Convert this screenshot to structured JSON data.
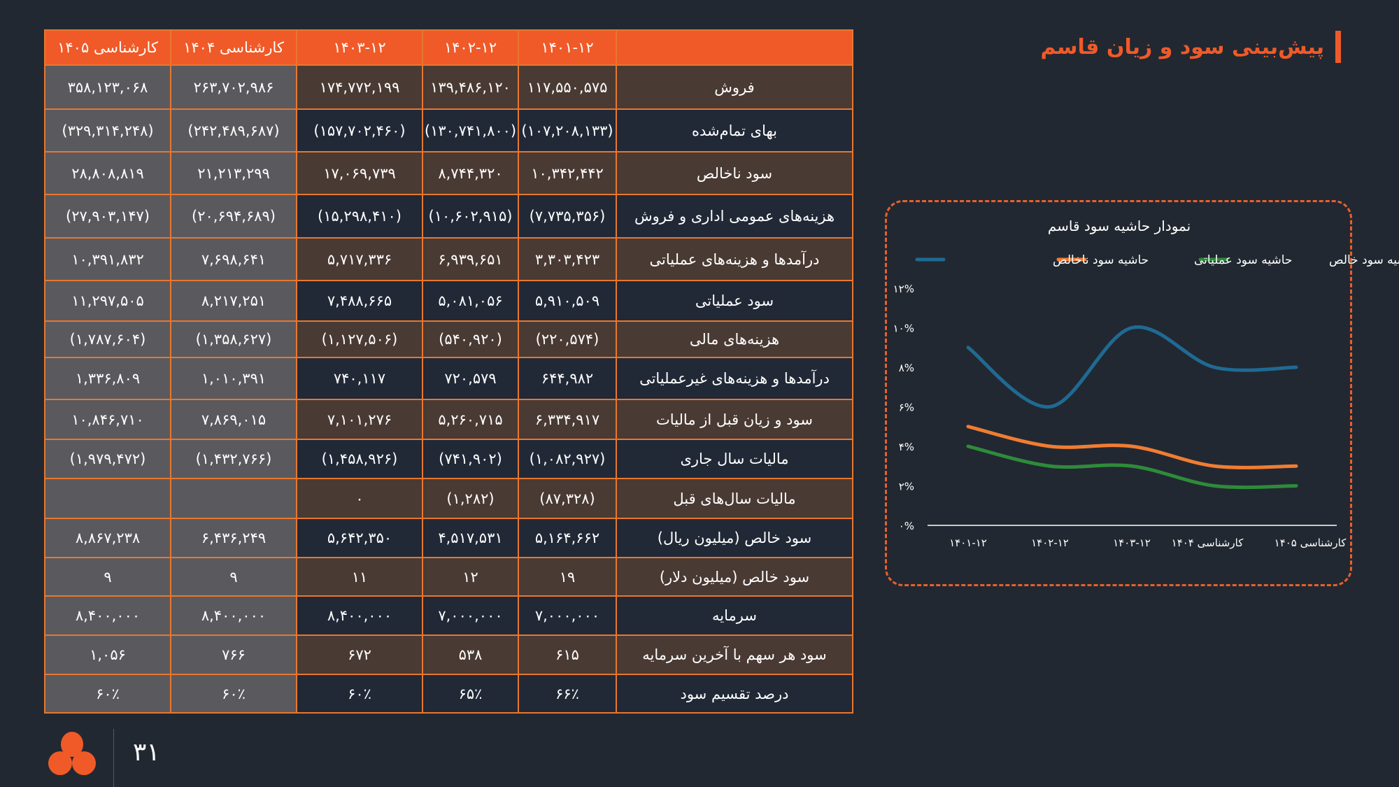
{
  "title": "پیش‌بینی سود و زیان قاسم",
  "table": {
    "headers": [
      "",
      "۱۴۰۱-۱۲",
      "۱۴۰۲-۱۲",
      "۱۴۰۳-۱۲",
      "کارشناسی ۱۴۰۴",
      "کارشناسی ۱۴۰۵"
    ],
    "rows": [
      {
        "label": "فروش",
        "values": [
          "۱۱۷,۵۵۰,۵۷۵",
          "۱۳۹,۴۸۶,۱۲۰",
          "۱۷۴,۷۷۲,۱۹۹",
          "۲۶۳,۷۰۲,۹۸۶",
          "۳۵۸,۱۲۳,۰۶۸"
        ]
      },
      {
        "label": "بهای تمام‌شده",
        "values": [
          "(۱۰۷,۲۰۸,۱۳۳)",
          "(۱۳۰,۷۴۱,۸۰۰)",
          "(۱۵۷,۷۰۲,۴۶۰)",
          "(۲۴۲,۴۸۹,۶۸۷)",
          "(۳۲۹,۳۱۴,۲۴۸)"
        ]
      },
      {
        "label": "سود ناخالص",
        "values": [
          "۱۰,۳۴۲,۴۴۲",
          "۸,۷۴۴,۳۲۰",
          "۱۷,۰۶۹,۷۳۹",
          "۲۱,۲۱۳,۲۹۹",
          "۲۸,۸۰۸,۸۱۹"
        ]
      },
      {
        "label": "هزینه‌های عمومی اداری و فروش",
        "values": [
          "(۷,۷۳۵,۳۵۶)",
          "(۱۰,۶۰۲,۹۱۵)",
          "(۱۵,۲۹۸,۴۱۰)",
          "(۲۰,۶۹۴,۶۸۹)",
          "(۲۷,۹۰۳,۱۴۷)"
        ]
      },
      {
        "label": "درآمدها و هزینه‌های عملیاتی",
        "values": [
          "۳,۳۰۳,۴۲۳",
          "۶,۹۳۹,۶۵۱",
          "۵,۷۱۷,۳۳۶",
          "۷,۶۹۸,۶۴۱",
          "۱۰,۳۹۱,۸۳۲"
        ]
      },
      {
        "label": "سود عملیاتی",
        "values": [
          "۵,۹۱۰,۵۰۹",
          "۵,۰۸۱,۰۵۶",
          "۷,۴۸۸,۶۶۵",
          "۸,۲۱۷,۲۵۱",
          "۱۱,۲۹۷,۵۰۵"
        ]
      },
      {
        "label": "هزینه‌های مالی",
        "values": [
          "(۲۲۰,۵۷۴)",
          "(۵۴۰,۹۲۰)",
          "(۱,۱۲۷,۵۰۶)",
          "(۱,۳۵۸,۶۲۷)",
          "(۱,۷۸۷,۶۰۴)"
        ]
      },
      {
        "label": "درآمدها و هزینه‌های غیرعملیاتی",
        "values": [
          "۶۴۴,۹۸۲",
          "۷۲۰,۵۷۹",
          "۷۴۰,۱۱۷",
          "۱,۰۱۰,۳۹۱",
          "۱,۳۳۶,۸۰۹"
        ]
      },
      {
        "label": "سود و زیان قبل از مالیات",
        "values": [
          "۶,۳۳۴,۹۱۷",
          "۵,۲۶۰,۷۱۵",
          "۷,۱۰۱,۲۷۶",
          "۷,۸۶۹,۰۱۵",
          "۱۰,۸۴۶,۷۱۰"
        ]
      },
      {
        "label": "مالیات سال جاری",
        "values": [
          "(۱,۰۸۲,۹۲۷)",
          "(۷۴۱,۹۰۲)",
          "(۱,۴۵۸,۹۲۶)",
          "(۱,۴۳۲,۷۶۶)",
          "(۱,۹۷۹,۴۷۲)"
        ]
      },
      {
        "label": "مالیات سال‌های قبل",
        "values": [
          "(۸۷,۳۲۸)",
          "(۱,۲۸۲)",
          "۰",
          "",
          ""
        ]
      },
      {
        "label": "سود خالص (میلیون ریال)",
        "values": [
          "۵,۱۶۴,۶۶۲",
          "۴,۵۱۷,۵۳۱",
          "۵,۶۴۲,۳۵۰",
          "۶,۴۳۶,۲۴۹",
          "۸,۸۶۷,۲۳۸"
        ]
      },
      {
        "label": "سود خالص (میلیون دلار)",
        "values": [
          "۱۹",
          "۱۲",
          "۱۱",
          "۹",
          "۹"
        ]
      },
      {
        "label": "سرمایه",
        "values": [
          "۷,۰۰۰,۰۰۰",
          "۷,۰۰۰,۰۰۰",
          "۸,۴۰۰,۰۰۰",
          "۸,۴۰۰,۰۰۰",
          "۸,۴۰۰,۰۰۰"
        ]
      },
      {
        "label": "سود هر سهم با آخرین سرمایه",
        "values": [
          "۶۱۵",
          "۵۳۸",
          "۶۷۲",
          "۷۶۶",
          "۱,۰۵۶"
        ]
      },
      {
        "label": "درصد تقسیم سود",
        "values": [
          "۶۶٪",
          "۶۵٪",
          "۶۰٪",
          "۶۰٪",
          "۶۰٪"
        ]
      }
    ]
  },
  "chart_data": {
    "type": "line",
    "title": "نمودار حاشیه سود قاسم",
    "categories": [
      "۱۴۰۱-۱۲",
      "۱۴۰۲-۱۲",
      "۱۴۰۳-۱۲",
      "کارشناسی ۱۴۰۴",
      "کارشناسی ۱۴۰۵"
    ],
    "yticks": [
      "۰%",
      "۲%",
      "۴%",
      "۶%",
      "۸%",
      "۱۰%",
      "۱۲%"
    ],
    "ylim": [
      0,
      12
    ],
    "legend_position": "top",
    "grid": false,
    "series": [
      {
        "name": "حاشیه سود خالص",
        "color": "#2e8b3a",
        "values": [
          4,
          3,
          3,
          2,
          2
        ]
      },
      {
        "name": "حاشیه سود عملیاتی",
        "color": "#f07d32",
        "values": [
          5,
          4,
          4,
          3,
          3
        ]
      },
      {
        "name": "حاشیه سود ناخالص",
        "color": "#1f6a93",
        "values": [
          9,
          6,
          10,
          8,
          8
        ]
      }
    ]
  },
  "footer": {
    "page_number": "۳۱"
  },
  "colors": {
    "accent": "#f05a28",
    "background": "#222831"
  }
}
